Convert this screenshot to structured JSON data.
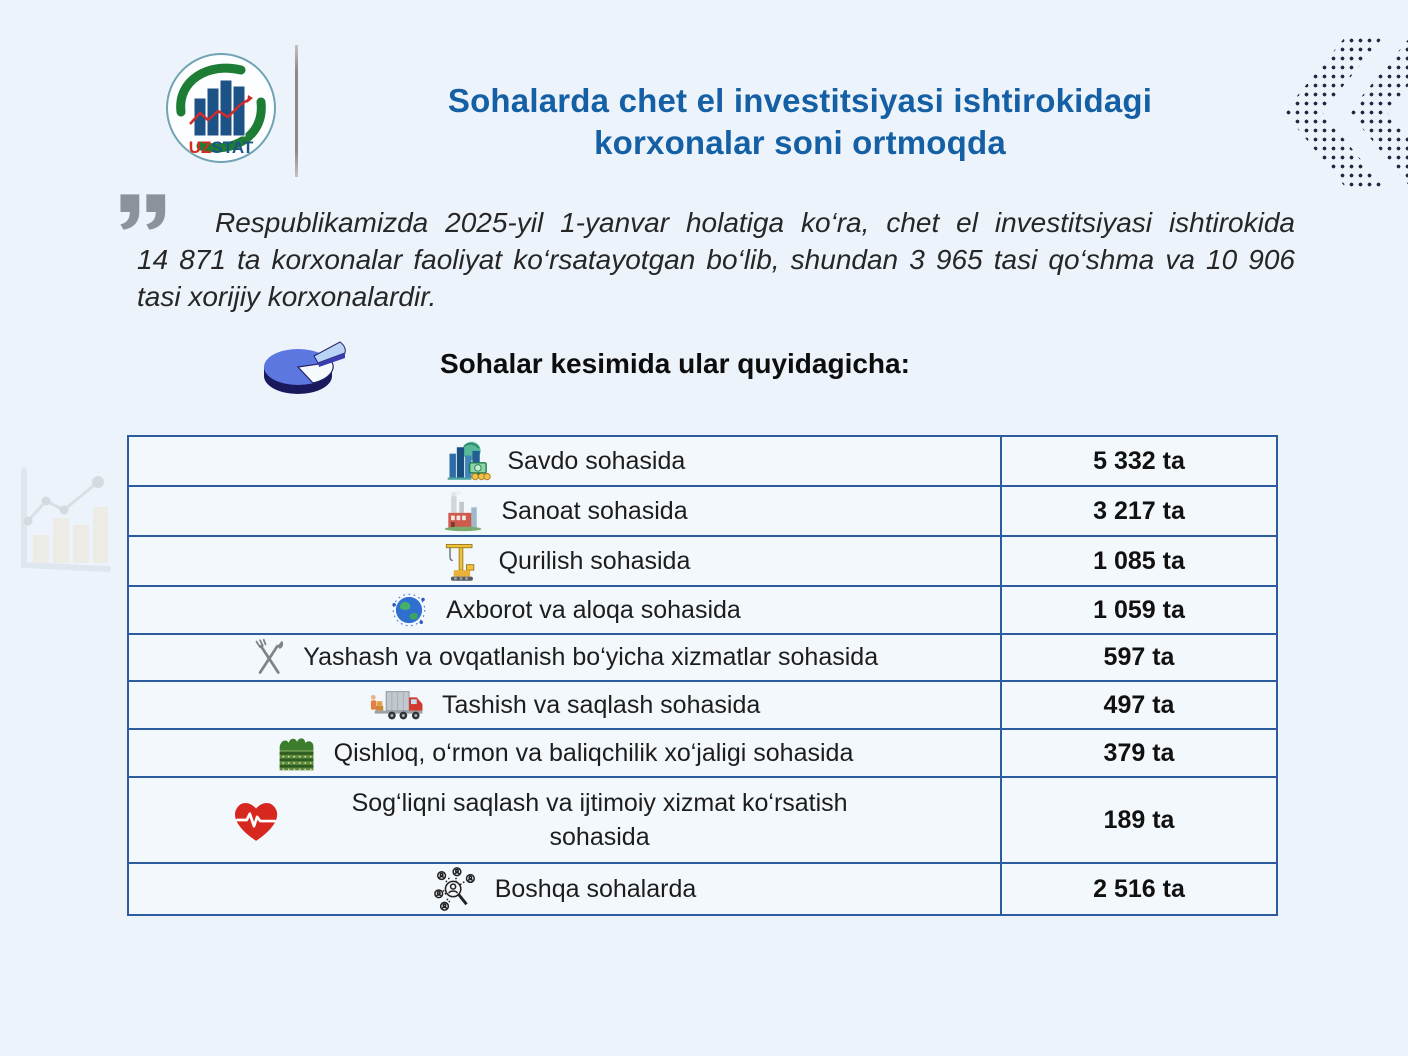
{
  "page": {
    "background_color": "#edf3fa",
    "accent_blue": "#1560a5",
    "table_border": "#2d5c9e"
  },
  "logo": {
    "uz": "UZ",
    "stat": "STAT",
    "uz_color": "#d42b1e",
    "stat_color": "#1d5286"
  },
  "header": {
    "title_line1": "Sohalarda chet el investitsiyasi ishtirokidagi",
    "title_line2": "korxonalar soni ortmoqda"
  },
  "quote": {
    "text": "Respublikamizda 2025-yil 1-yanvar holatiga ko‘ra, chet el investitsiyasi ishtirokida 14 871 ta korxonalar faoliyat ko‘rsatayotgan bo‘lib, shundan 3 965 tasi qo‘shma va 10 906 tasi xorijiy korxonalardir."
  },
  "subtitle": {
    "label": "Sohalar kesimida ular quyidagicha:"
  },
  "table": {
    "rows": [
      {
        "icon": "trade-city-icon",
        "label": "Savdo sohasida",
        "value": "5 332 ta"
      },
      {
        "icon": "factory-icon",
        "label": "Sanoat sohasida",
        "value": "3 217 ta"
      },
      {
        "icon": "crane-icon",
        "label": "Qurilish sohasida",
        "value": "1 085 ta"
      },
      {
        "icon": "globe-icon",
        "label": "Axborot va aloqa sohasida",
        "value": "1 059 ta"
      },
      {
        "icon": "cutlery-icon",
        "label": "Yashash va ovqatlanish bo‘yicha xizmatlar sohasida",
        "value": "597 ta"
      },
      {
        "icon": "truck-icon",
        "label": "Tashish va saqlash sohasida",
        "value": "497 ta"
      },
      {
        "icon": "farm-icon",
        "label": "Qishloq, o‘rmon va baliqchilik xo‘jaligi sohasida",
        "value": "379 ta"
      },
      {
        "icon": "heart-pulse-icon",
        "label": "Sog‘liqni saqlash va ijtimoiy xizmat ko‘rsatish sohasida",
        "value": "189 ta"
      },
      {
        "icon": "people-network-icon",
        "label": "Boshqa sohalarda",
        "value": "2 516 ta"
      }
    ]
  },
  "chart_data": {
    "type": "table",
    "title": "Sohalar kesimida ular quyidagicha:",
    "categories": [
      "Savdo sohasida",
      "Sanoat sohasida",
      "Qurilish sohasida",
      "Axborot va aloqa sohasida",
      "Yashash va ovqatlanish bo‘yicha xizmatlar sohasida",
      "Tashish va saqlash sohasida",
      "Qishloq, o‘rmon va baliqchilik xo‘jaligi sohasida",
      "Sog‘liqni saqlash va ijtimoiy xizmat ko‘rsatish sohasida",
      "Boshqa sohalarda"
    ],
    "values": [
      5332,
      3217,
      1085,
      1059,
      597,
      497,
      379,
      189,
      2516
    ],
    "unit": "ta",
    "context_totals": {
      "jami_korxonalar": 14871,
      "qoshma": 3965,
      "xorijiy": 10906,
      "sana": "2025-yil 1-yanvar"
    }
  }
}
